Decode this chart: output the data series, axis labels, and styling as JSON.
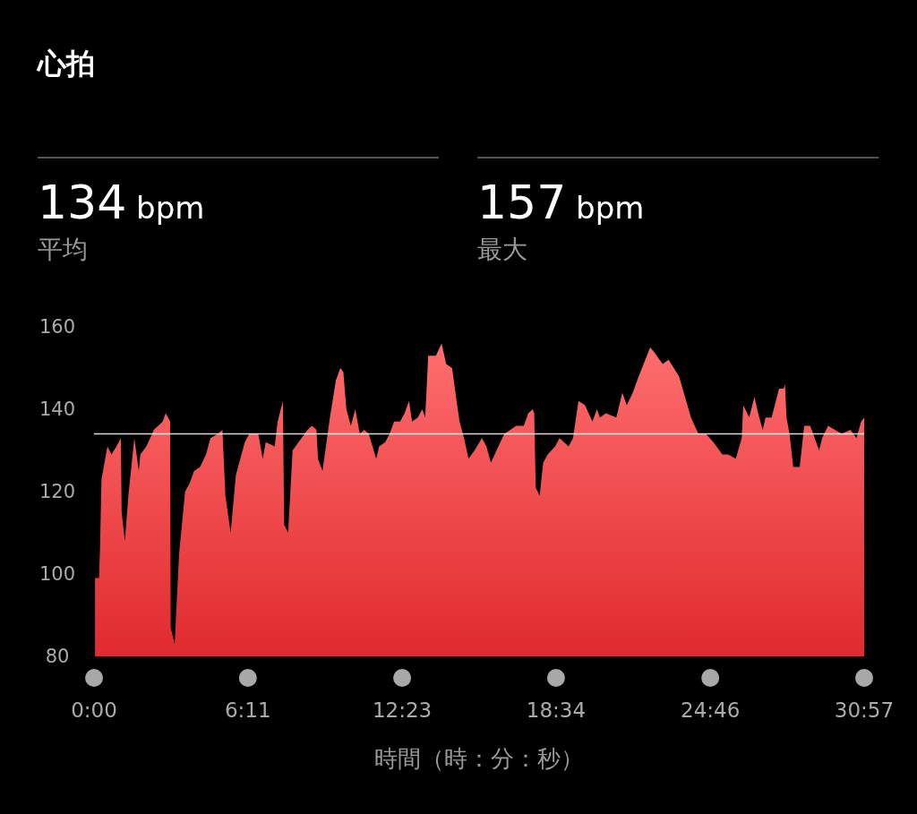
{
  "chart_data": {
    "type": "area",
    "title": "心拍",
    "annotations": [
      "134 bpm",
      "平均",
      "157 bpm",
      "最大"
    ],
    "xlabel": "時間（時：分：秒）",
    "xlim": [
      0,
      30.95
    ],
    "xticks": [
      {
        "value": 0,
        "label": "0:00"
      },
      {
        "value": 6.1833,
        "label": "6:11"
      },
      {
        "value": 12.3833,
        "label": "12:23"
      },
      {
        "value": 18.5667,
        "label": "18:34"
      },
      {
        "value": 24.7667,
        "label": "24:46"
      },
      {
        "value": 30.95,
        "label": "30:57"
      }
    ],
    "ylim": [
      80,
      160
    ],
    "yticks": [
      80,
      100,
      120,
      140,
      160
    ],
    "grid": false,
    "ref_lines": [
      {
        "axis": "y",
        "value": 134,
        "color": "#ffffff"
      }
    ],
    "series": [
      {
        "color": "#f04848",
        "x": [
          0.04,
          0.2,
          0.24,
          0.3,
          0.54,
          0.7,
          0.9,
          1.08,
          1.11,
          1.24,
          1.38,
          1.62,
          1.8,
          1.86,
          2.1,
          2.34,
          2.4,
          2.58,
          2.76,
          2.88,
          3.06,
          3.08,
          3.24,
          3.42,
          3.66,
          3.84,
          4.02,
          4.26,
          4.5,
          4.68,
          4.98,
          5.16,
          5.28,
          5.49,
          5.7,
          6.06,
          6.24,
          6.6,
          6.78,
          6.9,
          7.26,
          7.38,
          7.59,
          7.64,
          7.8,
          7.98,
          8.22,
          8.58,
          8.76,
          8.94,
          9.0,
          9.18,
          9.48,
          9.72,
          9.9,
          10.02,
          10.14,
          10.32,
          10.5,
          10.68,
          10.86,
          11.04,
          11.34,
          11.46,
          11.7,
          11.88,
          12.06,
          12.3,
          12.48,
          12.66,
          12.78,
          13.01,
          13.19,
          13.31,
          13.43,
          13.74,
          13.97,
          14.15,
          14.39,
          14.57,
          14.69,
          14.87,
          15.05,
          15.29,
          15.59,
          15.77,
          15.95,
          16.25,
          16.49,
          16.97,
          17.27,
          17.45,
          17.63,
          17.69,
          17.75,
          17.91,
          18.05,
          18.23,
          18.53,
          18.71,
          19.07,
          19.25,
          19.47,
          19.73,
          20.03,
          20.21,
          20.33,
          20.57,
          20.99,
          21.23,
          21.41,
          21.65,
          21.89,
          22.35,
          22.49,
          22.85,
          23.09,
          23.51,
          23.99,
          24.29,
          24.59,
          24.89,
          25.25,
          25.49,
          25.79,
          26.03,
          26.09,
          26.33,
          26.54,
          26.69,
          26.87,
          26.99,
          27.23,
          27.53,
          27.71,
          27.77,
          27.83,
          27.95,
          28.1,
          28.36,
          28.54,
          28.78,
          29.02,
          29.14,
          29.26,
          29.5,
          30.05,
          30.4,
          30.64,
          30.83,
          30.95
        ],
        "values": [
          99,
          99,
          106,
          123,
          131,
          129,
          131,
          133,
          115,
          108,
          119,
          133,
          125,
          129,
          131,
          134,
          135,
          136,
          137,
          139,
          137,
          87,
          83,
          105,
          120,
          122,
          125,
          126,
          129,
          133,
          134,
          135,
          119,
          110,
          124,
          132,
          134,
          134,
          128,
          132,
          131,
          137,
          142,
          112,
          110,
          130,
          132,
          135,
          136,
          135,
          128,
          125,
          138,
          147,
          150,
          149,
          140,
          136,
          140,
          134,
          135,
          134,
          128,
          131,
          132,
          134,
          137,
          137,
          139,
          142,
          137,
          138,
          140,
          138,
          153,
          153,
          156,
          151,
          150,
          142,
          137,
          133,
          128,
          130,
          133,
          131,
          127,
          131,
          134,
          136,
          136,
          139,
          140,
          139,
          121,
          119,
          127,
          129,
          131,
          133,
          131,
          133,
          142,
          141,
          137,
          140,
          138,
          139,
          138,
          144,
          141,
          144,
          148,
          155,
          154,
          151,
          152,
          148,
          138,
          134,
          134,
          132,
          129,
          129,
          128,
          133,
          141,
          138,
          143,
          139,
          135,
          138,
          138,
          145,
          145,
          146,
          138,
          134,
          126,
          126,
          136,
          136,
          132,
          130,
          133,
          136,
          134,
          135,
          133,
          137,
          138
        ]
      }
    ]
  }
}
